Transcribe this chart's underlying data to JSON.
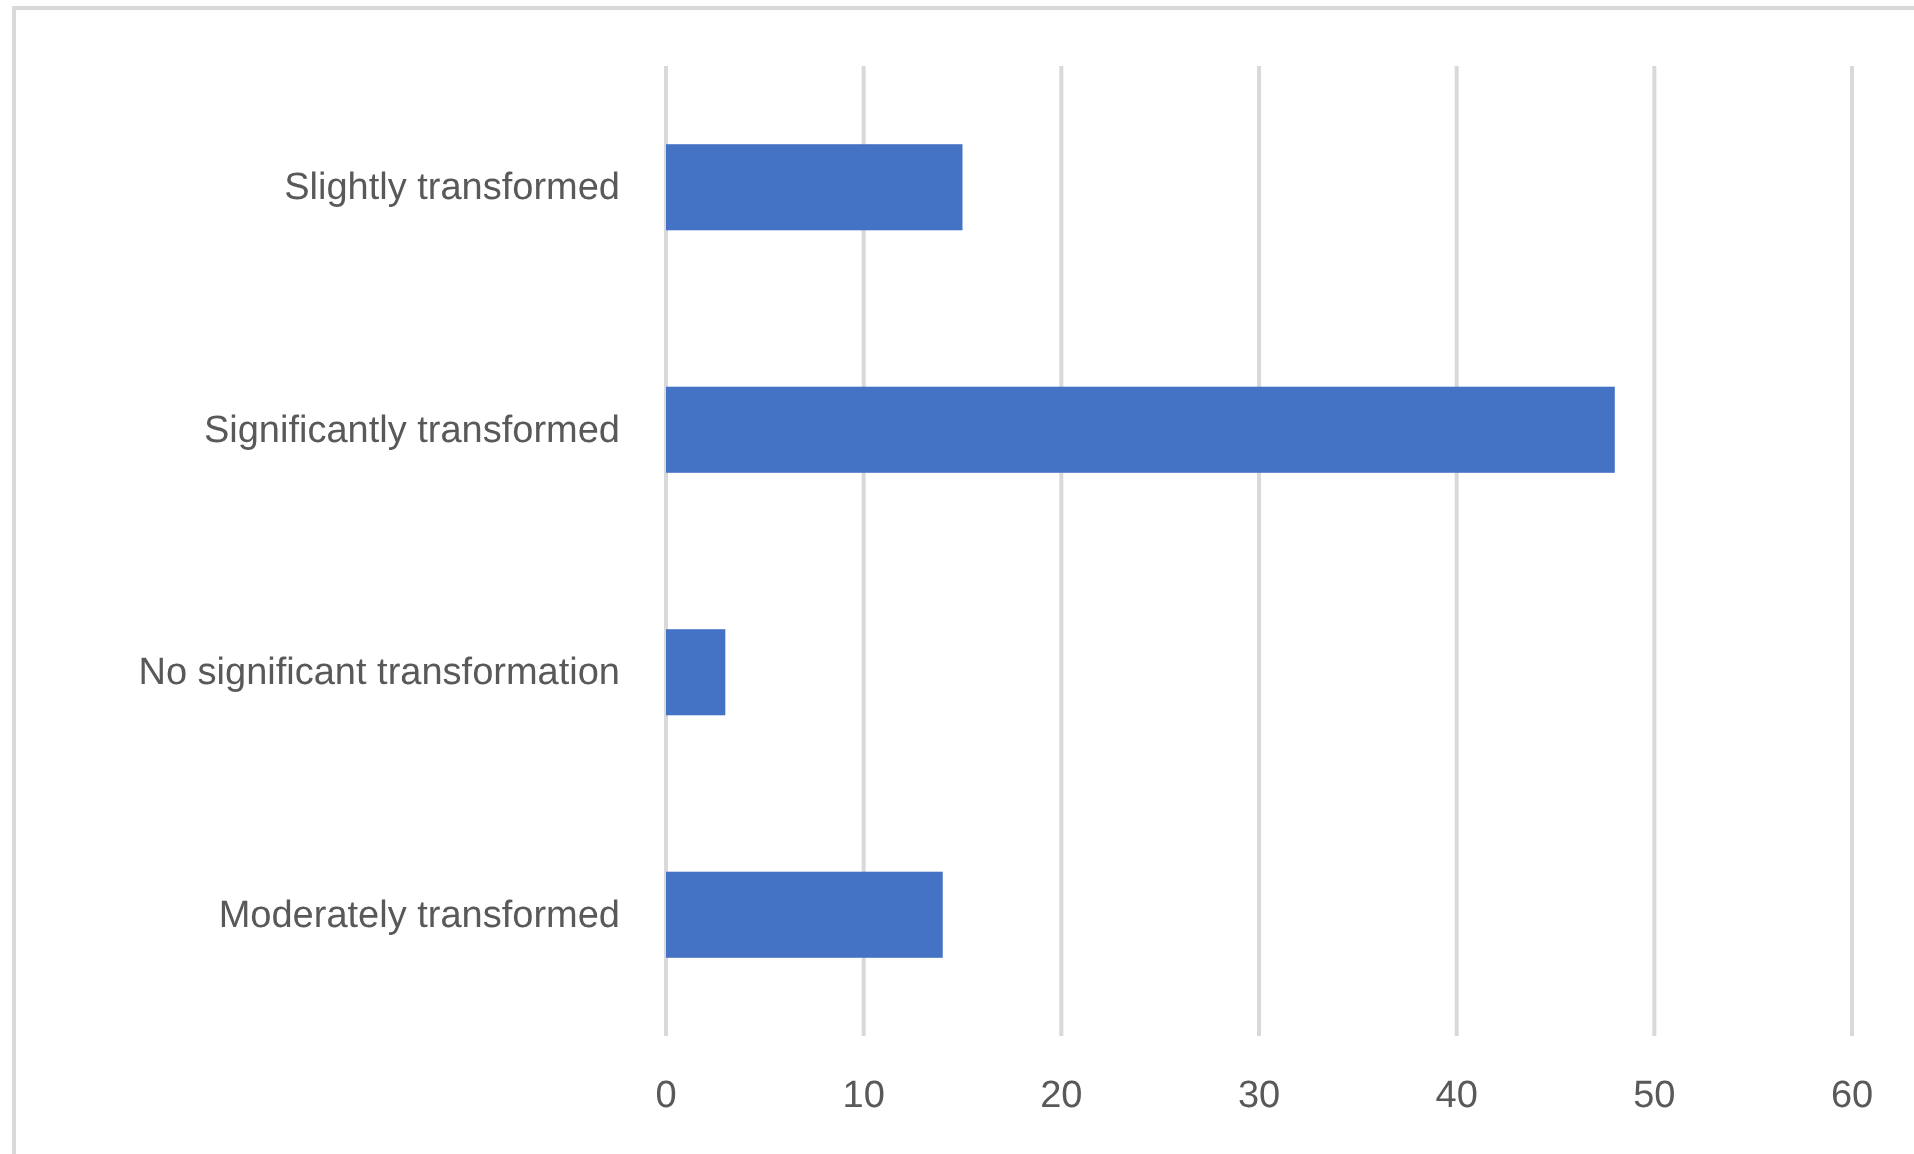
{
  "chart_data": {
    "type": "bar",
    "orientation": "horizontal",
    "categories": [
      "Slightly transformed",
      "Significantly transformed",
      "No significant transformation",
      "Moderately transformed"
    ],
    "values": [
      15,
      48,
      3,
      14
    ],
    "color": "#4472c4",
    "xlim": [
      0,
      60
    ],
    "xticks": [
      0,
      10,
      20,
      30,
      40,
      50,
      60
    ],
    "grid": "x"
  }
}
